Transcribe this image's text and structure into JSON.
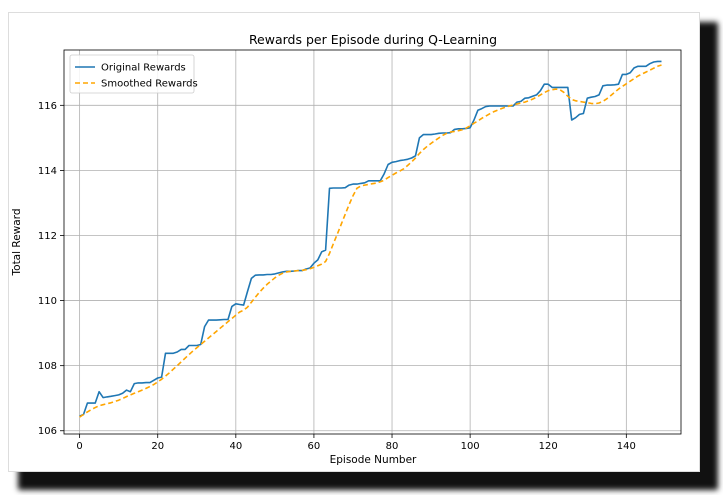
{
  "chart_data": {
    "type": "line",
    "title": "Rewards per Episode during Q-Learning",
    "xlabel": "Episode Number",
    "ylabel": "Total Reward",
    "xlim": [
      -4,
      154
    ],
    "ylim": [
      105.9,
      117.7
    ],
    "xticks": [
      0,
      20,
      40,
      60,
      80,
      100,
      120,
      140
    ],
    "yticks": [
      106,
      108,
      110,
      112,
      114,
      116
    ],
    "grid": true,
    "legend": "top-left",
    "x_start": 0,
    "x_step": 1,
    "series": [
      {
        "name": "Original Rewards",
        "color": "#1f77b4",
        "style": "solid",
        "values": [
          106.45,
          106.5,
          106.85,
          106.85,
          106.85,
          107.2,
          107.02,
          107.04,
          107.06,
          107.08,
          107.1,
          107.15,
          107.25,
          107.2,
          107.45,
          107.47,
          107.47,
          107.48,
          107.48,
          107.55,
          107.62,
          107.65,
          108.38,
          108.38,
          108.38,
          108.42,
          108.5,
          108.5,
          108.62,
          108.62,
          108.62,
          108.65,
          109.2,
          109.4,
          109.4,
          109.4,
          109.41,
          109.42,
          109.42,
          109.82,
          109.9,
          109.88,
          109.86,
          110.28,
          110.68,
          110.78,
          110.79,
          110.79,
          110.8,
          110.8,
          110.82,
          110.85,
          110.88,
          110.9,
          110.9,
          110.91,
          110.92,
          110.92,
          110.97,
          111.0,
          111.15,
          111.25,
          111.5,
          111.55,
          113.45,
          113.46,
          113.46,
          113.46,
          113.47,
          113.55,
          113.58,
          113.58,
          113.6,
          113.62,
          113.68,
          113.68,
          113.68,
          113.68,
          113.9,
          114.18,
          114.25,
          114.27,
          114.3,
          114.32,
          114.34,
          114.38,
          114.45,
          115.0,
          115.1,
          115.1,
          115.1,
          115.12,
          115.14,
          115.15,
          115.15,
          115.16,
          115.26,
          115.28,
          115.28,
          115.29,
          115.31,
          115.55,
          115.85,
          115.9,
          115.96,
          115.98,
          115.98,
          115.98,
          115.98,
          115.98,
          115.98,
          115.98,
          116.1,
          116.12,
          116.22,
          116.23,
          116.28,
          116.32,
          116.45,
          116.65,
          116.65,
          116.55,
          116.55,
          116.55,
          116.55,
          116.55,
          115.55,
          115.62,
          115.72,
          115.75,
          116.22,
          116.25,
          116.27,
          116.32,
          116.6,
          116.62,
          116.62,
          116.63,
          116.65,
          116.95,
          116.95,
          117.0,
          117.15,
          117.2,
          117.2,
          117.2,
          117.28,
          117.33,
          117.35,
          117.35
        ]
      },
      {
        "name": "Smoothed Rewards",
        "color": "#ffa500",
        "style": "dashed",
        "values": [
          106.42,
          106.5,
          106.58,
          106.65,
          106.71,
          106.77,
          106.8,
          106.83,
          106.86,
          106.9,
          106.94,
          106.99,
          107.05,
          107.1,
          107.15,
          107.2,
          107.25,
          107.3,
          107.36,
          107.42,
          107.5,
          107.58,
          107.68,
          107.78,
          107.89,
          108.0,
          108.12,
          108.23,
          108.34,
          108.45,
          108.55,
          108.65,
          108.75,
          108.85,
          108.95,
          109.05,
          109.15,
          109.25,
          109.35,
          109.45,
          109.55,
          109.65,
          109.7,
          109.8,
          109.95,
          110.1,
          110.25,
          110.38,
          110.5,
          110.6,
          110.7,
          110.78,
          110.84,
          110.88,
          110.9,
          110.91,
          110.92,
          110.93,
          110.95,
          110.98,
          111.02,
          111.07,
          111.12,
          111.2,
          111.45,
          111.75,
          112.05,
          112.35,
          112.65,
          112.95,
          113.22,
          113.45,
          113.52,
          113.55,
          113.57,
          113.59,
          113.61,
          113.65,
          113.7,
          113.78,
          113.85,
          113.92,
          113.98,
          114.05,
          114.15,
          114.26,
          114.38,
          114.52,
          114.64,
          114.74,
          114.83,
          114.92,
          115.0,
          115.08,
          115.14,
          115.18,
          115.2,
          115.22,
          115.25,
          115.3,
          115.37,
          115.45,
          115.52,
          115.6,
          115.67,
          115.74,
          115.8,
          115.85,
          115.9,
          115.94,
          115.98,
          116.01,
          116.04,
          116.07,
          116.1,
          116.14,
          116.19,
          116.25,
          116.32,
          116.39,
          116.45,
          116.48,
          116.5,
          116.48,
          116.4,
          116.28,
          116.18,
          116.14,
          116.12,
          116.1,
          116.08,
          116.06,
          116.05,
          116.07,
          116.12,
          116.2,
          116.3,
          116.4,
          116.5,
          116.58,
          116.66,
          116.74,
          116.82,
          116.9,
          116.96,
          117.02,
          117.08,
          117.14,
          117.2,
          117.24
        ]
      }
    ]
  }
}
